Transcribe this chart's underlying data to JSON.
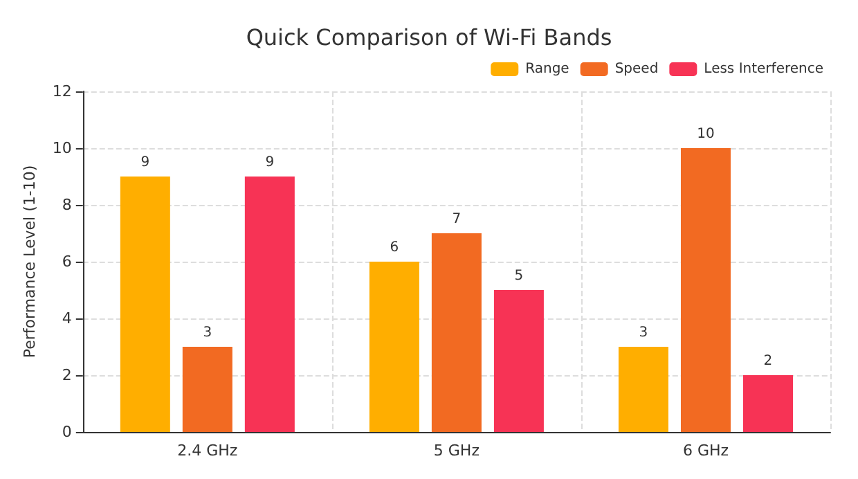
{
  "chart_data": {
    "type": "bar",
    "title": "Quick Comparison of Wi-Fi Bands",
    "ylabel": "Performance Level (1-10)",
    "categories": [
      "2.4 GHz",
      "5 GHz",
      "6 GHz"
    ],
    "series": [
      {
        "name": "Range",
        "color": "#ffae00",
        "values": [
          9,
          6,
          3
        ]
      },
      {
        "name": "Speed",
        "color": "#f26a22",
        "values": [
          3,
          7,
          10
        ]
      },
      {
        "name": "Less Interference",
        "color": "#f73355",
        "values": [
          9,
          5,
          2
        ]
      }
    ],
    "ylim": [
      0,
      12
    ],
    "yticks": [
      0,
      2,
      4,
      6,
      8,
      10,
      12
    ],
    "grid": true,
    "legend": "top right",
    "data_labels": true
  }
}
